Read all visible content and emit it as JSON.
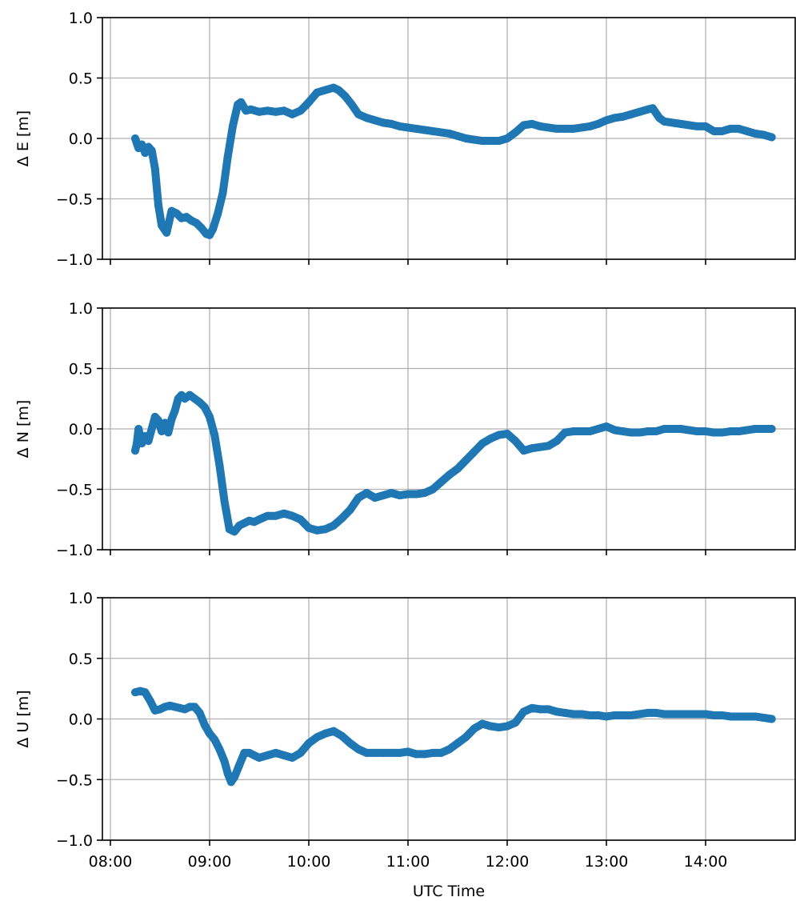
{
  "chart_data": [
    {
      "type": "scatter",
      "ylabel": "Δ E [m]",
      "xlabel": "",
      "ylim": [
        -1.0,
        1.0
      ],
      "yticks": [
        -1.0,
        -0.5,
        0.0,
        0.5,
        1.0
      ],
      "ytick_labels": [
        "−1.0",
        "−0.5",
        "0.0",
        "0.5",
        "1.0"
      ],
      "xlim": [
        "08:00",
        "14:50"
      ],
      "xticks": [
        "08:00",
        "09:00",
        "10:00",
        "11:00",
        "12:00",
        "13:00",
        "14:00"
      ],
      "xtick_labels_shown": false,
      "grid": true,
      "color": "#1f77b4",
      "x": [
        "08:15",
        "08:17",
        "08:19",
        "08:21",
        "08:23",
        "08:25",
        "08:27",
        "08:29",
        "08:31",
        "08:34",
        "08:37",
        "08:40",
        "08:43",
        "08:46",
        "08:49",
        "08:52",
        "08:55",
        "08:58",
        "09:00",
        "09:02",
        "09:05",
        "09:08",
        "09:11",
        "09:14",
        "09:17",
        "09:19",
        "09:22",
        "09:25",
        "09:30",
        "09:35",
        "09:40",
        "09:45",
        "09:50",
        "09:55",
        "09:58",
        "10:00",
        "10:05",
        "10:10",
        "10:15",
        "10:18",
        "10:22",
        "10:26",
        "10:30",
        "10:35",
        "10:40",
        "10:45",
        "10:50",
        "10:55",
        "11:00",
        "11:05",
        "11:10",
        "11:15",
        "11:20",
        "11:25",
        "11:30",
        "11:35",
        "11:40",
        "11:45",
        "11:50",
        "11:55",
        "12:00",
        "12:05",
        "12:10",
        "12:15",
        "12:20",
        "12:25",
        "12:30",
        "12:35",
        "12:40",
        "12:45",
        "12:50",
        "12:55",
        "13:00",
        "13:05",
        "13:10",
        "13:15",
        "13:20",
        "13:25",
        "13:28",
        "13:32",
        "13:35",
        "13:40",
        "13:45",
        "13:50",
        "13:55",
        "14:00",
        "14:05",
        "14:10",
        "14:15",
        "14:20",
        "14:25",
        "14:30",
        "14:35",
        "14:40"
      ],
      "y": [
        0.0,
        -0.08,
        -0.05,
        -0.12,
        -0.07,
        -0.1,
        -0.25,
        -0.55,
        -0.72,
        -0.78,
        -0.6,
        -0.62,
        -0.66,
        -0.65,
        -0.68,
        -0.7,
        -0.74,
        -0.79,
        -0.8,
        -0.75,
        -0.62,
        -0.45,
        -0.15,
        0.1,
        0.28,
        0.3,
        0.23,
        0.24,
        0.22,
        0.23,
        0.22,
        0.23,
        0.2,
        0.23,
        0.27,
        0.3,
        0.38,
        0.4,
        0.42,
        0.4,
        0.35,
        0.28,
        0.2,
        0.17,
        0.15,
        0.13,
        0.12,
        0.1,
        0.09,
        0.08,
        0.07,
        0.06,
        0.05,
        0.04,
        0.02,
        0.0,
        -0.01,
        -0.02,
        -0.02,
        -0.02,
        0.0,
        0.05,
        0.11,
        0.12,
        0.1,
        0.09,
        0.08,
        0.08,
        0.08,
        0.09,
        0.1,
        0.12,
        0.15,
        0.17,
        0.18,
        0.2,
        0.22,
        0.24,
        0.25,
        0.17,
        0.14,
        0.13,
        0.12,
        0.11,
        0.1,
        0.1,
        0.06,
        0.06,
        0.08,
        0.08,
        0.06,
        0.04,
        0.03,
        0.01
      ]
    },
    {
      "type": "scatter",
      "ylabel": "Δ N [m]",
      "xlabel": "",
      "ylim": [
        -1.0,
        1.0
      ],
      "yticks": [
        -1.0,
        -0.5,
        0.0,
        0.5,
        1.0
      ],
      "ytick_labels": [
        "−1.0",
        "−0.5",
        "0.0",
        "0.5",
        "1.0"
      ],
      "xlim": [
        "08:00",
        "14:50"
      ],
      "xticks": [
        "08:00",
        "09:00",
        "10:00",
        "11:00",
        "12:00",
        "13:00",
        "14:00"
      ],
      "xtick_labels_shown": false,
      "grid": true,
      "color": "#1f77b4",
      "x": [
        "08:15",
        "08:16",
        "08:17",
        "08:19",
        "08:21",
        "08:23",
        "08:25",
        "08:27",
        "08:29",
        "08:31",
        "08:33",
        "08:35",
        "08:37",
        "08:39",
        "08:41",
        "08:43",
        "08:45",
        "08:48",
        "08:51",
        "08:54",
        "08:57",
        "09:00",
        "09:03",
        "09:06",
        "09:09",
        "09:12",
        "09:15",
        "09:18",
        "09:21",
        "09:24",
        "09:27",
        "09:30",
        "09:35",
        "09:40",
        "09:45",
        "09:50",
        "09:55",
        "10:00",
        "10:05",
        "10:10",
        "10:15",
        "10:20",
        "10:25",
        "10:30",
        "10:35",
        "10:40",
        "10:45",
        "10:50",
        "10:55",
        "11:00",
        "11:05",
        "11:10",
        "11:15",
        "11:20",
        "11:25",
        "11:30",
        "11:35",
        "11:40",
        "11:45",
        "11:50",
        "11:55",
        "12:00",
        "12:05",
        "12:10",
        "12:15",
        "12:20",
        "12:25",
        "12:30",
        "12:35",
        "12:40",
        "12:45",
        "12:50",
        "12:55",
        "13:00",
        "13:05",
        "13:10",
        "13:15",
        "13:20",
        "13:25",
        "13:30",
        "13:35",
        "13:40",
        "13:45",
        "13:50",
        "13:55",
        "14:00",
        "14:05",
        "14:10",
        "14:15",
        "14:20",
        "14:25",
        "14:30",
        "14:35",
        "14:40"
      ],
      "y": [
        -0.18,
        -0.12,
        0.0,
        -0.12,
        -0.06,
        -0.1,
        0.0,
        0.1,
        0.07,
        -0.02,
        0.05,
        -0.03,
        0.08,
        0.15,
        0.25,
        0.28,
        0.25,
        0.28,
        0.25,
        0.22,
        0.18,
        0.1,
        -0.05,
        -0.3,
        -0.6,
        -0.83,
        -0.85,
        -0.8,
        -0.78,
        -0.76,
        -0.77,
        -0.75,
        -0.72,
        -0.72,
        -0.7,
        -0.72,
        -0.75,
        -0.82,
        -0.84,
        -0.83,
        -0.8,
        -0.74,
        -0.67,
        -0.57,
        -0.53,
        -0.57,
        -0.55,
        -0.53,
        -0.55,
        -0.54,
        -0.54,
        -0.53,
        -0.5,
        -0.44,
        -0.38,
        -0.33,
        -0.26,
        -0.19,
        -0.12,
        -0.08,
        -0.05,
        -0.04,
        -0.1,
        -0.18,
        -0.16,
        -0.15,
        -0.14,
        -0.1,
        -0.03,
        -0.02,
        -0.02,
        -0.02,
        0.0,
        0.02,
        -0.01,
        -0.02,
        -0.03,
        -0.03,
        -0.02,
        -0.02,
        0.0,
        0.0,
        0.0,
        -0.01,
        -0.02,
        -0.02,
        -0.03,
        -0.03,
        -0.02,
        -0.02,
        -0.01,
        0.0,
        0.0,
        0.0
      ]
    },
    {
      "type": "scatter",
      "ylabel": "Δ U [m]",
      "xlabel": "UTC Time",
      "ylim": [
        -1.0,
        1.0
      ],
      "yticks": [
        -1.0,
        -0.5,
        0.0,
        0.5,
        1.0
      ],
      "ytick_labels": [
        "−1.0",
        "−0.5",
        "0.0",
        "0.5",
        "1.0"
      ],
      "xlim": [
        "08:00",
        "14:50"
      ],
      "xticks": [
        "08:00",
        "09:00",
        "10:00",
        "11:00",
        "12:00",
        "13:00",
        "14:00"
      ],
      "xtick_labels": [
        "08:00",
        "09:00",
        "10:00",
        "11:00",
        "12:00",
        "13:00",
        "14:00"
      ],
      "xtick_labels_shown": true,
      "grid": true,
      "color": "#1f77b4",
      "x": [
        "08:15",
        "08:18",
        "08:21",
        "08:24",
        "08:27",
        "08:30",
        "08:33",
        "08:36",
        "08:39",
        "08:42",
        "08:45",
        "08:48",
        "08:51",
        "08:54",
        "08:57",
        "09:00",
        "09:03",
        "09:06",
        "09:09",
        "09:11",
        "09:13",
        "09:15",
        "09:18",
        "09:21",
        "09:24",
        "09:27",
        "09:30",
        "09:35",
        "09:40",
        "09:45",
        "09:50",
        "09:55",
        "10:00",
        "10:05",
        "10:10",
        "10:15",
        "10:20",
        "10:25",
        "10:30",
        "10:35",
        "10:40",
        "10:45",
        "10:50",
        "10:55",
        "11:00",
        "11:05",
        "11:10",
        "11:15",
        "11:20",
        "11:25",
        "11:30",
        "11:35",
        "11:40",
        "11:45",
        "11:50",
        "11:55",
        "12:00",
        "12:05",
        "12:10",
        "12:15",
        "12:20",
        "12:25",
        "12:30",
        "12:35",
        "12:40",
        "12:45",
        "12:50",
        "12:55",
        "13:00",
        "13:05",
        "13:10",
        "13:15",
        "13:20",
        "13:25",
        "13:30",
        "13:35",
        "13:40",
        "13:45",
        "13:50",
        "13:55",
        "14:00",
        "14:05",
        "14:10",
        "14:15",
        "14:20",
        "14:25",
        "14:30",
        "14:35",
        "14:40"
      ],
      "y": [
        0.22,
        0.23,
        0.22,
        0.15,
        0.07,
        0.08,
        0.1,
        0.11,
        0.1,
        0.09,
        0.08,
        0.1,
        0.1,
        0.05,
        -0.05,
        -0.12,
        -0.17,
        -0.25,
        -0.35,
        -0.45,
        -0.52,
        -0.48,
        -0.38,
        -0.28,
        -0.28,
        -0.3,
        -0.32,
        -0.3,
        -0.28,
        -0.3,
        -0.32,
        -0.28,
        -0.2,
        -0.15,
        -0.12,
        -0.1,
        -0.14,
        -0.2,
        -0.25,
        -0.28,
        -0.28,
        -0.28,
        -0.28,
        -0.28,
        -0.27,
        -0.29,
        -0.29,
        -0.28,
        -0.28,
        -0.25,
        -0.2,
        -0.15,
        -0.08,
        -0.04,
        -0.06,
        -0.07,
        -0.06,
        -0.03,
        0.06,
        0.09,
        0.08,
        0.08,
        0.06,
        0.05,
        0.04,
        0.04,
        0.03,
        0.03,
        0.02,
        0.03,
        0.03,
        0.03,
        0.04,
        0.05,
        0.05,
        0.04,
        0.04,
        0.04,
        0.04,
        0.04,
        0.04,
        0.03,
        0.03,
        0.02,
        0.02,
        0.02,
        0.02,
        0.01,
        0.0
      ]
    }
  ]
}
